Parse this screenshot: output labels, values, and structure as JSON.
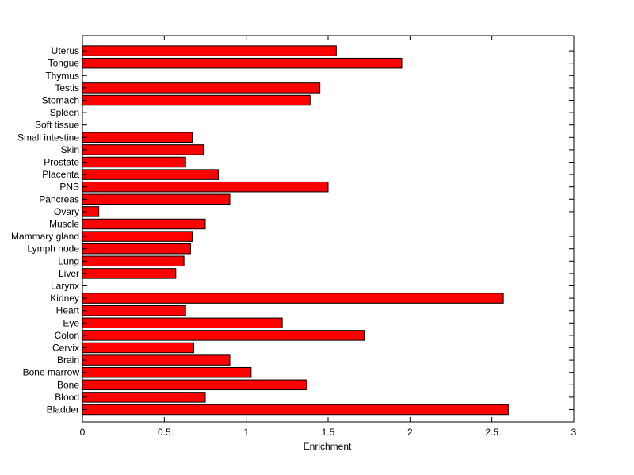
{
  "chart_data": {
    "type": "bar",
    "orientation": "horizontal",
    "categories": [
      "Bladder",
      "Blood",
      "Bone",
      "Bone marrow",
      "Brain",
      "Cervix",
      "Colon",
      "Eye",
      "Heart",
      "Kidney",
      "Larynx",
      "Liver",
      "Lung",
      "Lymph node",
      "Mammary gland",
      "Muscle",
      "Ovary",
      "Pancreas",
      "PNS",
      "Placenta",
      "Prostate",
      "Skin",
      "Small intestine",
      "Soft tissue",
      "Spleen",
      "Stomach",
      "Testis",
      "Thymus",
      "Tongue",
      "Uterus"
    ],
    "values": [
      2.6,
      0.75,
      1.37,
      1.03,
      0.9,
      0.68,
      1.72,
      1.22,
      0.63,
      2.57,
      0,
      0.57,
      0.62,
      0.66,
      0.67,
      0.75,
      0.1,
      0.9,
      1.5,
      0.83,
      0.63,
      0.74,
      0.67,
      0,
      0,
      1.39,
      1.45,
      0,
      1.95,
      1.55
    ],
    "xlabel": "Enrichment",
    "ylabel": "",
    "title": "",
    "xlim": [
      0,
      3
    ],
    "xticks": [
      0,
      0.5,
      1,
      1.5,
      2,
      2.5,
      3
    ],
    "xtick_labels": [
      "0",
      "0.5",
      "1",
      "1.5",
      "2",
      "2.5",
      "3"
    ],
    "grid": false,
    "bar_color": "#ff0000",
    "bar_edge_color": "#000000"
  }
}
